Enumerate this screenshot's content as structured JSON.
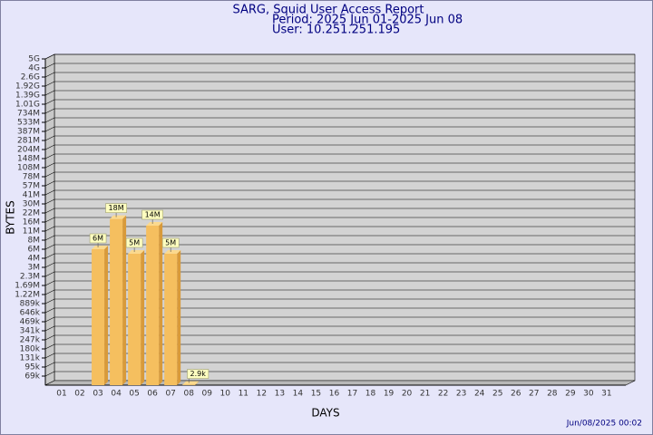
{
  "chart_data": {
    "type": "bar",
    "title": "SARG, Squid User Access Report",
    "subtitle": "Period: 2025 Jun 01-2025 Jun 08",
    "user": "User: 10.251.251.195",
    "x_label": "DAYS",
    "y_label": "BYTES",
    "footer": "Jun/08/2025 00:02",
    "categories": [
      "01",
      "02",
      "03",
      "04",
      "05",
      "06",
      "07",
      "08",
      "09",
      "10",
      "11",
      "12",
      "13",
      "14",
      "15",
      "16",
      "17",
      "18",
      "19",
      "20",
      "21",
      "22",
      "23",
      "24",
      "25",
      "26",
      "27",
      "28",
      "29",
      "30",
      "31"
    ],
    "values": [
      null,
      null,
      6000000,
      18000000,
      5000000,
      14000000,
      5000000,
      2900,
      null,
      null,
      null,
      null,
      null,
      null,
      null,
      null,
      null,
      null,
      null,
      null,
      null,
      null,
      null,
      null,
      null,
      null,
      null,
      null,
      null,
      null,
      null
    ],
    "value_labels": [
      null,
      null,
      "6M",
      "18M",
      "5M",
      "14M",
      "5M",
      "2.9k",
      null,
      null,
      null,
      null,
      null,
      null,
      null,
      null,
      null,
      null,
      null,
      null,
      null,
      null,
      null,
      null,
      null,
      null,
      null,
      null,
      null,
      null,
      null
    ],
    "color": "#f5bf5f",
    "ylim": [
      0,
      5000000000
    ],
    "yticks": [
      {
        "value": 69000,
        "label": "69k"
      },
      {
        "value": 95000,
        "label": "95k"
      },
      {
        "value": 131000,
        "label": "131k"
      },
      {
        "value": 180000,
        "label": "180k"
      },
      {
        "value": 247000,
        "label": "247k"
      },
      {
        "value": 341000,
        "label": "341k"
      },
      {
        "value": 469000,
        "label": "469k"
      },
      {
        "value": 646000,
        "label": "646k"
      },
      {
        "value": 889000,
        "label": "889k"
      },
      {
        "value": 1220000,
        "label": "1.22M"
      },
      {
        "value": 1690000,
        "label": "1.69M"
      },
      {
        "value": 2300000,
        "label": "2.3M"
      },
      {
        "value": 3000000,
        "label": "3M"
      },
      {
        "value": 4000000,
        "label": "4M"
      },
      {
        "value": 6000000,
        "label": "6M"
      },
      {
        "value": 8000000,
        "label": "8M"
      },
      {
        "value": 11000000,
        "label": "11M"
      },
      {
        "value": 16000000,
        "label": "16M"
      },
      {
        "value": 22000000,
        "label": "22M"
      },
      {
        "value": 30000000,
        "label": "30M"
      },
      {
        "value": 41000000,
        "label": "41M"
      },
      {
        "value": 57000000,
        "label": "57M"
      },
      {
        "value": 78000000,
        "label": "78M"
      },
      {
        "value": 108000000,
        "label": "108M"
      },
      {
        "value": 148000000,
        "label": "148M"
      },
      {
        "value": 204000000,
        "label": "204M"
      },
      {
        "value": 281000000,
        "label": "281M"
      },
      {
        "value": 387000000,
        "label": "387M"
      },
      {
        "value": 533000000,
        "label": "533M"
      },
      {
        "value": 734000000,
        "label": "734M"
      },
      {
        "value": 1010000000,
        "label": "1.01G"
      },
      {
        "value": 1390000000,
        "label": "1.39G"
      },
      {
        "value": 1920000000,
        "label": "1.92G"
      },
      {
        "value": 2600000000,
        "label": "2.6G"
      },
      {
        "value": 4000000000,
        "label": "4G"
      },
      {
        "value": 5000000000,
        "label": "5G"
      }
    ],
    "grid": true
  }
}
